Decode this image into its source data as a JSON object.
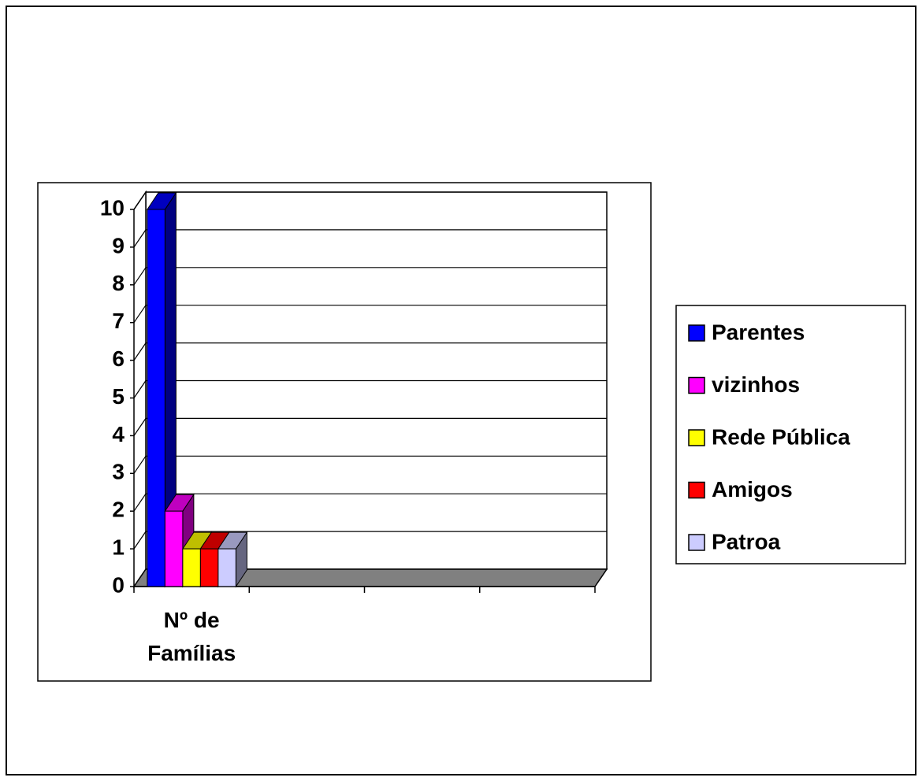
{
  "chart_data": {
    "type": "bar3d",
    "categories": [
      "Nº de Famílias",
      null,
      null,
      null
    ],
    "series": [
      {
        "name": "Parentes",
        "color": "#0000ff",
        "values": [
          10,
          null,
          null,
          null
        ]
      },
      {
        "name": "vizinhos",
        "color": "#ff00ff",
        "values": [
          2,
          null,
          null,
          null
        ]
      },
      {
        "name": "Rede Pública",
        "color": "#ffff00",
        "values": [
          1,
          null,
          null,
          null
        ]
      },
      {
        "name": "Amigos",
        "color": "#ff0000",
        "values": [
          1,
          null,
          null,
          null
        ]
      },
      {
        "name": "Patroa",
        "color": "#ccccff",
        "values": [
          1,
          null,
          null,
          null
        ]
      }
    ],
    "ylim": [
      0,
      10
    ],
    "yticks": [
      0,
      1,
      2,
      3,
      4,
      5,
      6,
      7,
      8,
      9,
      10
    ],
    "grid": true,
    "legend": "right"
  }
}
